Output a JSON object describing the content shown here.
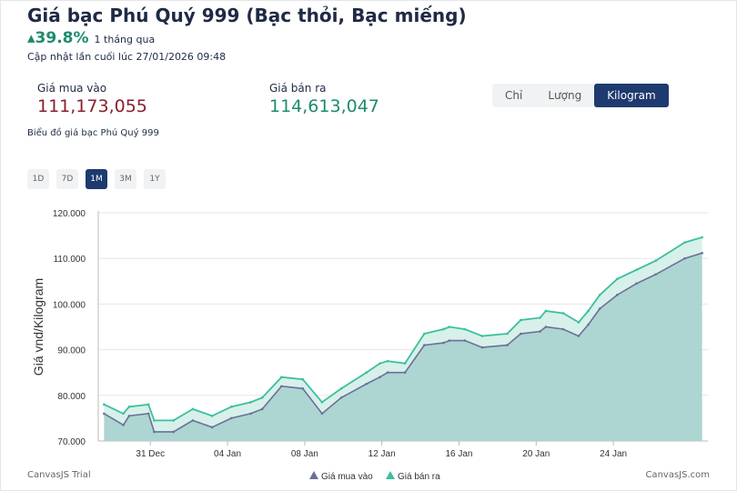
{
  "header": {
    "title": "Giá bạc Phú Quý 999 (Bạc thỏi, Bạc miếng)",
    "change_value": "39.8%",
    "change_period": "1 tháng qua",
    "updated": "Cập nhật lần cuối lúc 27/01/2026 09:48"
  },
  "prices": {
    "buy_label": "Giá mua vào",
    "buy_value": "111,173,055",
    "sell_label": "Giá bán ra",
    "sell_value": "114,613,047"
  },
  "unit_tabs": [
    "Chỉ",
    "Lượng",
    "Kilogram"
  ],
  "unit_selected": "Kilogram",
  "chart_caption": "Biểu đồ giá bạc Phú Quý 999",
  "range_buttons": [
    "1D",
    "7D",
    "1M",
    "3M",
    "1Y"
  ],
  "range_selected": "1M",
  "footer": {
    "trial": "CanvasJS Trial",
    "brand": "CanvasJS.com"
  },
  "colors": {
    "buy": "#6b6f9a",
    "sell": "#3cbf9d",
    "fill": "#a9d3cf",
    "accent": "#1e3a6e"
  },
  "chart_data": {
    "type": "area",
    "ylabel": "Giá vnd/Kilogram",
    "y_ticks": [
      "70.000",
      "80.000",
      "90.000",
      "100.000",
      "110.000",
      "120.000"
    ],
    "y_tick_values": [
      70,
      80,
      90,
      100,
      110,
      120
    ],
    "ylim": [
      70,
      120
    ],
    "x_ticks": [
      "31 Dec",
      "04 Jan",
      "08 Jan",
      "12 Jan",
      "16 Jan",
      "20 Jan",
      "24 Jan"
    ],
    "x_tick_days": [
      31,
      35,
      39,
      43,
      47,
      51,
      55
    ],
    "xlim": [
      28.3,
      59.9
    ],
    "grid": true,
    "legend_position": "bottom",
    "series": [
      {
        "name": "Giá mua vào",
        "color": "#6b6f9a",
        "days": [
          28.6,
          29.6,
          29.9,
          30.9,
          31.2,
          32.2,
          33.2,
          34.2,
          35.2,
          36.2,
          36.8,
          37.8,
          38.9,
          39.9,
          40.9,
          42.2,
          42.9,
          43.3,
          44.2,
          45.2,
          46.2,
          46.5,
          47.3,
          48.2,
          49.5,
          50.2,
          51.2,
          51.5,
          52.4,
          53.2,
          53.7,
          54.3,
          55.2,
          56.2,
          57.2,
          58.7,
          59.6
        ],
        "values": [
          76.0,
          73.5,
          75.5,
          76.0,
          72.0,
          72.0,
          74.5,
          73.0,
          75.0,
          76.0,
          77.0,
          82.0,
          81.5,
          76.0,
          79.5,
          82.5,
          84.0,
          85.0,
          85.0,
          91.0,
          91.5,
          92.0,
          92.0,
          90.5,
          91.0,
          93.5,
          94.0,
          95.0,
          94.5,
          93.0,
          95.5,
          99.0,
          102.0,
          104.5,
          106.5,
          110.0,
          111.17
        ]
      },
      {
        "name": "Giá bán ra",
        "color": "#3cbf9d",
        "days": [
          28.6,
          29.6,
          29.9,
          30.9,
          31.2,
          32.2,
          33.2,
          34.2,
          35.2,
          36.2,
          36.8,
          37.8,
          38.9,
          39.9,
          40.9,
          42.2,
          42.9,
          43.3,
          44.2,
          45.2,
          46.2,
          46.5,
          47.3,
          48.2,
          49.5,
          50.2,
          51.2,
          51.5,
          52.4,
          53.2,
          53.7,
          54.3,
          55.2,
          56.2,
          57.2,
          58.7,
          59.6
        ],
        "values": [
          78.0,
          76.0,
          77.5,
          78.0,
          74.5,
          74.5,
          77.0,
          75.5,
          77.5,
          78.5,
          79.5,
          84.0,
          83.5,
          78.5,
          81.5,
          85.0,
          87.0,
          87.5,
          87.0,
          93.5,
          94.5,
          95.0,
          94.5,
          93.0,
          93.5,
          96.5,
          97.0,
          98.5,
          98.0,
          96.0,
          98.5,
          102.0,
          105.5,
          107.5,
          109.5,
          113.5,
          114.61
        ]
      }
    ]
  }
}
